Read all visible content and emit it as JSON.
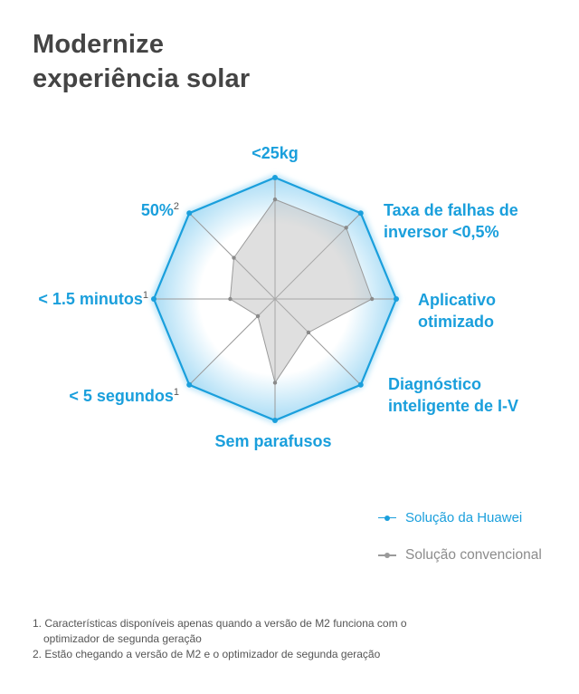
{
  "title": {
    "line1": "Modernize",
    "line2": "experiência solar"
  },
  "chart_data": {
    "type": "radar",
    "axes": [
      {
        "label": [
          "<25kg"
        ],
        "sup": ""
      },
      {
        "label": [
          "Taxa de falhas de",
          "inversor <0,5%"
        ],
        "sup": ""
      },
      {
        "label": [
          "Aplicativo",
          "otimizado"
        ],
        "sup": ""
      },
      {
        "label": [
          "Diagnóstico",
          "inteligente de I-V"
        ],
        "sup": ""
      },
      {
        "label": [
          "Sem parafusos"
        ],
        "sup": ""
      },
      {
        "label": [
          "< 5 segundos"
        ],
        "sup": "1"
      },
      {
        "label": [
          "< 1.5 minutos"
        ],
        "sup": "1"
      },
      {
        "label": [
          "50%"
        ],
        "sup": "2"
      }
    ],
    "series": [
      {
        "name": "Solução da Huawei",
        "color": "#1a9fdc",
        "values": [
          1,
          1,
          1,
          1,
          1,
          1,
          1,
          1
        ]
      },
      {
        "name": "Solução convencional",
        "color": "#9a9a9a",
        "values": [
          0.82,
          0.83,
          0.8,
          0.39,
          0.69,
          0.2,
          0.37,
          0.48
        ]
      }
    ],
    "range": [
      0,
      1
    ],
    "legend_position": "bottom-right"
  },
  "legend": {
    "huawei": "Solução da Huawei",
    "conventional": "Solução convencional"
  },
  "footnotes": {
    "n1_line1": "1. Características disponíveis apenas quando a versão de M2 funciona com o",
    "n1_line2": "optimizador de segunda geração",
    "n2": "2. Estão chegando  a versão de M2 e o optimizador de segunda geração"
  }
}
